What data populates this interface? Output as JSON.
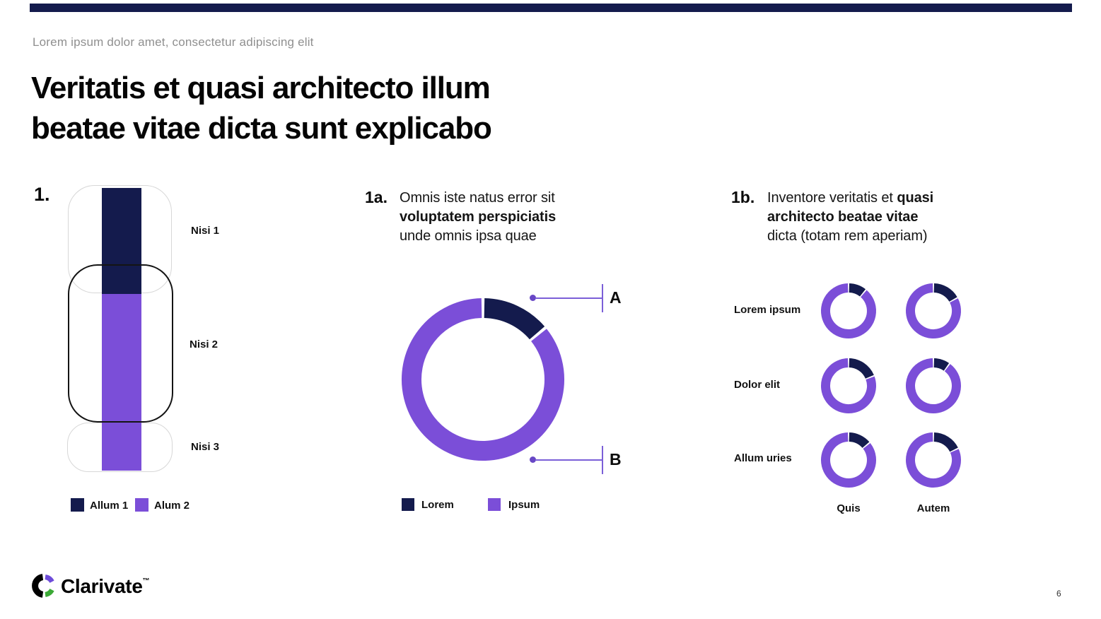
{
  "colors": {
    "navy": "#141B4D",
    "purple": "#7B4ED8",
    "callout_line": "#7B5FD8",
    "callout_dot": "#6847C5",
    "frame_gray": "#D7D7D7",
    "frame_black": "#141414",
    "subtitle_gray": "#8F8F8F",
    "logo_violet": "#6E4CD9",
    "logo_green": "#3BA936"
  },
  "page": {
    "subtitle": "Lorem ipsum dolor amet, consectetur adipiscing elit",
    "title_line1": "Veritatis et quasi architecto illum",
    "title_line2": "beatae vitae dicta sunt explicabo",
    "brand_name": "Clarivate",
    "brand_tm": "™",
    "page_number": "6"
  },
  "sections": {
    "s1": {
      "number": "1.",
      "labels": [
        "Nisi 1",
        "Nisi 2",
        "Nisi 3"
      ],
      "legend": [
        {
          "label": "Allum 1",
          "color_key": "navy"
        },
        {
          "label": "Alum 2",
          "color_key": "purple"
        }
      ]
    },
    "s1a": {
      "number": "1a.",
      "desc_line1": "Omnis iste natus error sit",
      "desc_line2_bold": "voluptatem perspiciatis",
      "desc_line3": "unde omnis ipsa quae",
      "callouts": [
        "A",
        "B"
      ],
      "legend": [
        {
          "label": "Lorem",
          "color_key": "navy"
        },
        {
          "label": "Ipsum",
          "color_key": "purple"
        }
      ]
    },
    "s1b": {
      "number": "1b.",
      "desc_line1_regular": "Inventore veritatis et ",
      "desc_line1_bold": "quasi",
      "desc_line2_bold": "architecto beatae vitae",
      "desc_line3": "dicta (totam rem aperiam)",
      "rows": [
        "Lorem ipsum",
        "Dolor elit",
        "Allum uries"
      ],
      "cols": [
        "Quis",
        "Autem"
      ]
    }
  },
  "chart_data": [
    {
      "type": "bar",
      "id": "stacked-stage-bar",
      "orientation": "vertical-single-stack",
      "categories": [
        "Nisi 1",
        "Nisi 2",
        "Nisi 3"
      ],
      "series": [
        {
          "name": "Allum 1",
          "color_key": "navy",
          "fraction": 0.375
        },
        {
          "name": "Alum 2",
          "color_key": "purple",
          "fraction": 0.625
        }
      ],
      "legend_position": "bottom",
      "note": "one vertical bar crossing three rounded stage frames"
    },
    {
      "type": "pie",
      "id": "donut-1a",
      "subtype": "donut",
      "labels": [
        "Lorem",
        "Ipsum"
      ],
      "values_pct": [
        14,
        86
      ],
      "color_keys": [
        "navy",
        "purple"
      ],
      "annotations": [
        "A",
        "B"
      ],
      "start_angle_deg": 0,
      "legend_position": "bottom"
    },
    {
      "type": "pie",
      "id": "donut-grid-1b",
      "subtype": "donut-grid",
      "rows": [
        "Lorem ipsum",
        "Dolor elit",
        "Allum uries"
      ],
      "cols": [
        "Quis",
        "Autem"
      ],
      "navy_pct": [
        [
          11,
          17
        ],
        [
          19,
          10
        ],
        [
          14,
          18
        ]
      ],
      "color_keys": [
        "navy",
        "purple"
      ]
    }
  ]
}
